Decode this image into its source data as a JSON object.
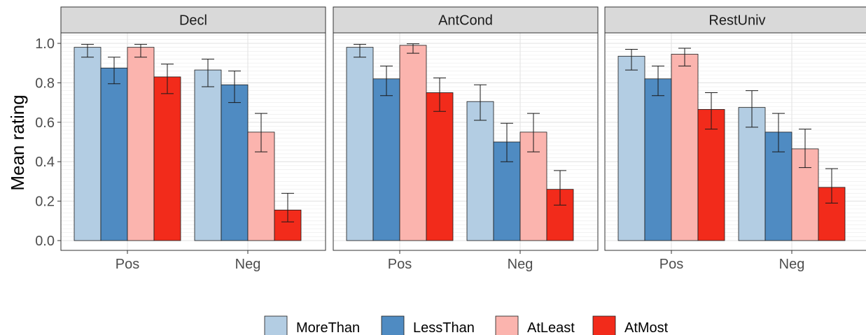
{
  "chart_data": {
    "type": "bar",
    "ylabel": "Mean rating",
    "xlabel": "",
    "ylim": [
      0,
      1.05
    ],
    "y_ticks": [
      "0.0",
      "0.2",
      "0.4",
      "0.6",
      "0.8",
      "1.0"
    ],
    "categories": [
      "Pos",
      "Neg"
    ],
    "legend_position": "bottom",
    "series_names": [
      "MoreThan",
      "LessThan",
      "AtLeast",
      "AtMost"
    ],
    "series_colors": [
      "#b3cde3",
      "#4f8bc2",
      "#fbb4ae",
      "#f22b1b"
    ],
    "panels": [
      {
        "title": "Decl",
        "series": [
          {
            "name": "MoreThan",
            "values": [
              0.98,
              0.865
            ],
            "ci_low": [
              0.93,
              0.78
            ],
            "ci_high": [
              0.995,
              0.92
            ]
          },
          {
            "name": "LessThan",
            "values": [
              0.875,
              0.79
            ],
            "ci_low": [
              0.795,
              0.7
            ],
            "ci_high": [
              0.93,
              0.86
            ]
          },
          {
            "name": "AtLeast",
            "values": [
              0.98,
              0.55
            ],
            "ci_low": [
              0.93,
              0.45
            ],
            "ci_high": [
              0.995,
              0.645
            ]
          },
          {
            "name": "AtMost",
            "values": [
              0.83,
              0.155
            ],
            "ci_low": [
              0.745,
              0.095
            ],
            "ci_high": [
              0.895,
              0.24
            ]
          }
        ]
      },
      {
        "title": "AntCond",
        "series": [
          {
            "name": "MoreThan",
            "values": [
              0.98,
              0.705
            ],
            "ci_low": [
              0.93,
              0.61
            ],
            "ci_high": [
              0.995,
              0.79
            ]
          },
          {
            "name": "LessThan",
            "values": [
              0.82,
              0.5
            ],
            "ci_low": [
              0.735,
              0.4
            ],
            "ci_high": [
              0.885,
              0.595
            ]
          },
          {
            "name": "AtLeast",
            "values": [
              0.99,
              0.55
            ],
            "ci_low": [
              0.95,
              0.45
            ],
            "ci_high": [
              0.998,
              0.645
            ]
          },
          {
            "name": "AtMost",
            "values": [
              0.75,
              0.26
            ],
            "ci_low": [
              0.655,
              0.18
            ],
            "ci_high": [
              0.825,
              0.355
            ]
          }
        ]
      },
      {
        "title": "RestUniv",
        "series": [
          {
            "name": "MoreThan",
            "values": [
              0.935,
              0.675
            ],
            "ci_low": [
              0.865,
              0.575
            ],
            "ci_high": [
              0.97,
              0.76
            ]
          },
          {
            "name": "LessThan",
            "values": [
              0.82,
              0.55
            ],
            "ci_low": [
              0.735,
              0.45
            ],
            "ci_high": [
              0.885,
              0.645
            ]
          },
          {
            "name": "AtLeast",
            "values": [
              0.945,
              0.465
            ],
            "ci_low": [
              0.885,
              0.37
            ],
            "ci_high": [
              0.975,
              0.565
            ]
          },
          {
            "name": "AtMost",
            "values": [
              0.665,
              0.27
            ],
            "ci_low": [
              0.565,
              0.19
            ],
            "ci_high": [
              0.75,
              0.365
            ]
          }
        ]
      }
    ]
  }
}
